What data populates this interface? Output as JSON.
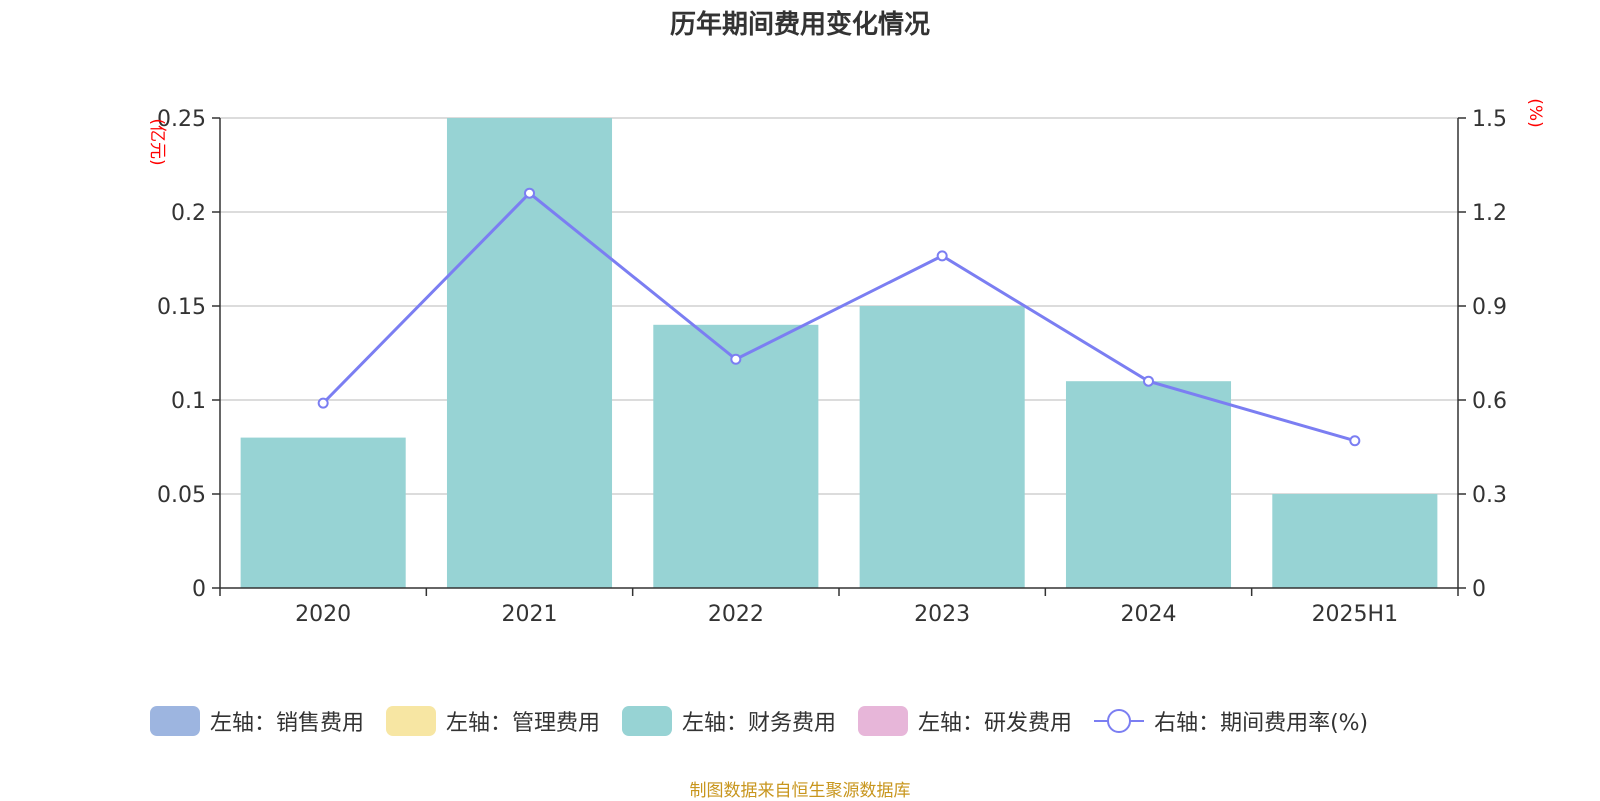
{
  "chart_data": {
    "type": "bar",
    "title": "历年期间费用变化情况",
    "categories": [
      "2020",
      "2021",
      "2022",
      "2023",
      "2024",
      "2025H1"
    ],
    "series": [
      {
        "name": "左轴：财务费用",
        "axis": "left",
        "type": "bar",
        "color": "#97d3d4",
        "values": [
          0.08,
          0.25,
          0.14,
          0.15,
          0.11,
          0.05
        ]
      },
      {
        "name": "右轴：期间费用率(%)",
        "axis": "right",
        "type": "line",
        "color": "#7b7ef2",
        "values": [
          0.59,
          1.26,
          0.73,
          1.06,
          0.66,
          0.47
        ]
      }
    ],
    "left_axis": {
      "label": "(亿元)",
      "ylim": [
        0,
        0.25
      ],
      "ticks": [
        0,
        0.05,
        0.1,
        0.15,
        0.2,
        0.25
      ],
      "tick_labels": [
        "0",
        "0.05",
        "0.1",
        "0.15",
        "0.2",
        "0.25"
      ]
    },
    "right_axis": {
      "label": "(%)",
      "ylim": [
        0,
        1.5
      ],
      "ticks": [
        0,
        0.3,
        0.6,
        0.9,
        1.2,
        1.5
      ],
      "tick_labels": [
        "0",
        "0.3",
        "0.6",
        "0.9",
        "1.2",
        "1.5"
      ]
    },
    "grid": true,
    "legend": [
      {
        "label": "左轴：销售费用",
        "color": "#9db5e0",
        "kind": "bar"
      },
      {
        "label": "左轴：管理费用",
        "color": "#f7e6a3",
        "kind": "bar"
      },
      {
        "label": "左轴：财务费用",
        "color": "#97d3d4",
        "kind": "bar"
      },
      {
        "label": "左轴：研发费用",
        "color": "#e7b6d9",
        "kind": "bar"
      },
      {
        "label": "右轴：期间费用率(%)",
        "color": "#7b7ef2",
        "kind": "line"
      }
    ],
    "source": "制图数据来自恒生聚源数据库"
  }
}
